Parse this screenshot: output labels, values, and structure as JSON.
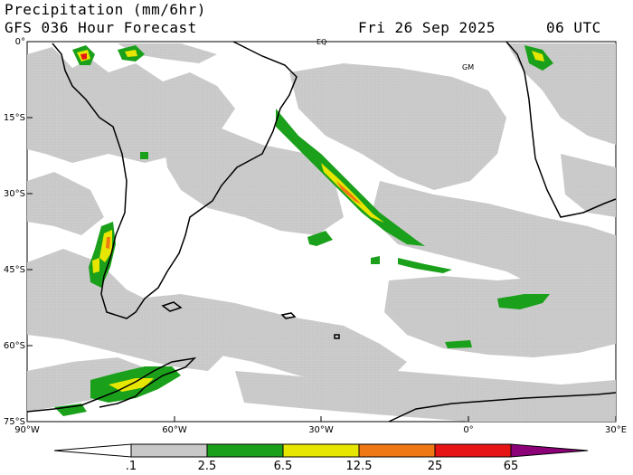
{
  "header": {
    "title": "Precipitation (mm/6hr)",
    "subtitle": "GFS 036 Hour Forecast",
    "date": "Fri 26 Sep 2025",
    "time": "06 UTC"
  },
  "map": {
    "lat_labels": [
      "0°",
      "15°S",
      "30°S",
      "45°S",
      "60°S",
      "75°S"
    ],
    "lon_labels": [
      "90°W",
      "60°W",
      "30°W",
      "0°",
      "30°E"
    ],
    "annotations": [
      "EQ",
      "GM"
    ]
  },
  "colorbar": {
    "labels": [
      ".1",
      "2.5",
      "6.5",
      "12.5",
      "25",
      "65"
    ],
    "colors": {
      "c1": "#c8c8c8",
      "c2": "#1aa01a",
      "c3": "#e6e600",
      "c4": "#f07814",
      "c5": "#e61414",
      "c6": "#8c0078"
    }
  }
}
